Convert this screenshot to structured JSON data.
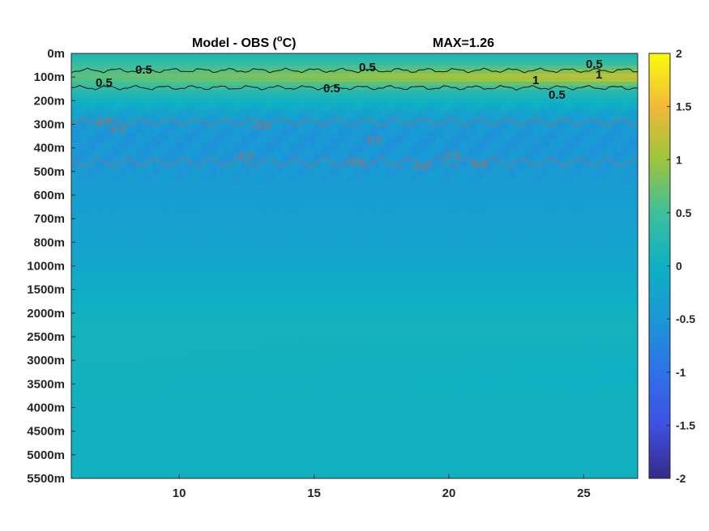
{
  "chart_data": {
    "type": "heatmap",
    "title": "Model - OBS (°C)",
    "title_left": "Model - OBS (",
    "title_superscript": "o",
    "title_right": "C)",
    "max_label": "MAX=1.26",
    "x_ticks": [
      10,
      15,
      20,
      25
    ],
    "x_tick_labels": [
      "10",
      "15",
      "20",
      "25"
    ],
    "xlim": [
      6,
      27
    ],
    "y_levels": [
      "0m",
      "100m",
      "200m",
      "300m",
      "400m",
      "500m",
      "600m",
      "700m",
      "800m",
      "1000m",
      "1500m",
      "2000m",
      "2500m",
      "3000m",
      "3500m",
      "4000m",
      "4500m",
      "5000m",
      "5500m"
    ],
    "colorbar": {
      "range": [
        -2,
        2
      ],
      "ticks": [
        2,
        1.5,
        1,
        0.5,
        0,
        -0.5,
        -1,
        -1.5,
        -2
      ],
      "tick_labels": [
        "2",
        "1.5",
        "1",
        "0.5",
        "0",
        "-0.5",
        "-1",
        "-1.5",
        "-2"
      ],
      "colormap": "parula"
    },
    "level_profile": {
      "levels_index": [
        0,
        0.5,
        1,
        1.5,
        2,
        2.5,
        3,
        3.5,
        4,
        4.5,
        5,
        5.5,
        6,
        7,
        8,
        9,
        10,
        11,
        12,
        13,
        14,
        15,
        16,
        17,
        18
      ],
      "values": [
        0.15,
        0.45,
        0.65,
        0.35,
        0.05,
        -0.25,
        -0.45,
        -0.5,
        -0.5,
        -0.48,
        -0.45,
        -0.4,
        -0.38,
        -0.32,
        -0.25,
        -0.2,
        -0.05,
        0.05,
        0.1,
        0.08,
        0.05,
        0.04,
        0.03,
        0.03,
        0.03
      ]
    },
    "contour_labels_positive": [
      "0.5",
      "0.5",
      "0.5",
      "0.5",
      "0.5",
      "0.5",
      "1",
      "1"
    ],
    "contour_labels_negative": [
      "-0.5",
      "-0.5",
      "-0.5",
      "-0.5",
      "-0.5",
      "-0.5",
      "-0.5",
      "-0.5",
      "-0.5"
    ]
  }
}
